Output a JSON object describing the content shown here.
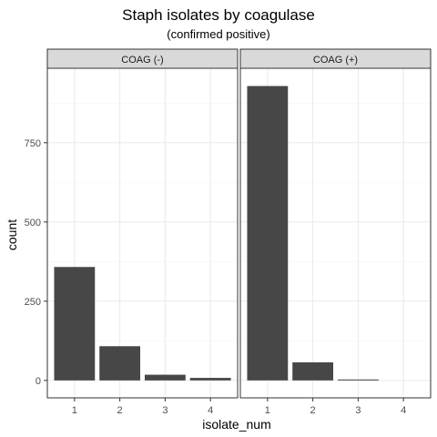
{
  "chart_data": {
    "type": "bar",
    "title": "Staph isolates by coagulase",
    "subtitle": "(confirmed positive)",
    "xlabel": "isolate_num",
    "ylabel": "count",
    "categories": [
      "1",
      "2",
      "3",
      "4"
    ],
    "y_ticks": [
      0,
      250,
      500,
      750
    ],
    "y_tick_labels": [
      "0",
      "250",
      "500",
      "750"
    ],
    "ylim": [
      -55,
      985
    ],
    "grid": true,
    "facets": [
      {
        "label": "COAG (-)",
        "values": [
          358,
          108,
          18,
          8
        ]
      },
      {
        "label": "COAG (+)",
        "values": [
          929,
          57,
          3,
          0
        ]
      }
    ],
    "colors": {
      "bar": "#474747",
      "strip_fill": "#d9d9d9",
      "panel_border": "#333333",
      "grid_major": "#ebebeb",
      "grid_minor": "#f5f5f5"
    }
  }
}
